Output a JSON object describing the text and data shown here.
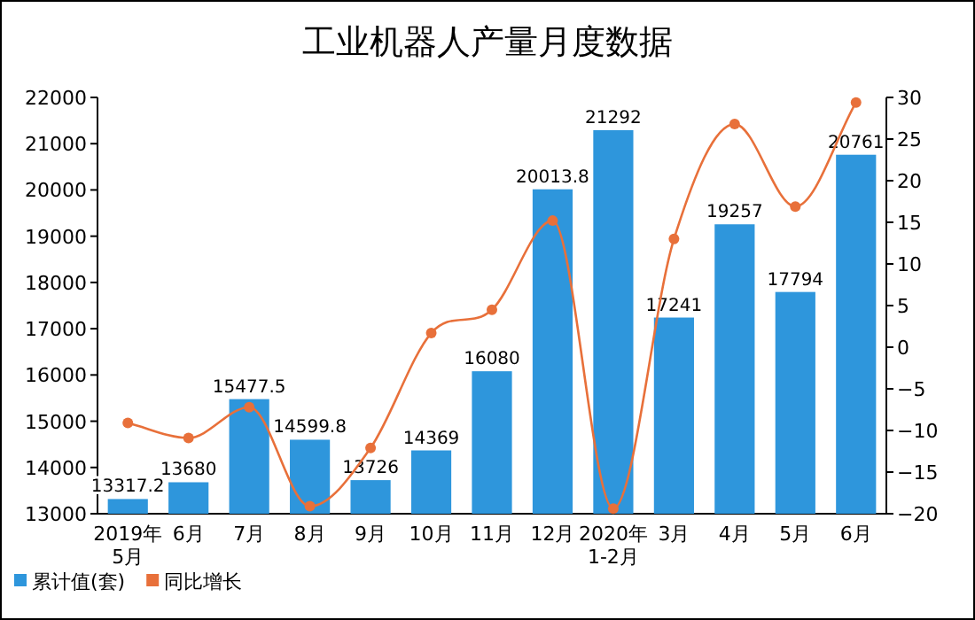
{
  "chart_data": {
    "type": "bar",
    "title": "工业机器人产量月度数据",
    "categories": [
      "2019年\n5月",
      "6月",
      "7月",
      "8月",
      "9月",
      "10月",
      "11月",
      "12月",
      "2020年\n1-2月",
      "3月",
      "4月",
      "5月",
      "6月"
    ],
    "series": [
      {
        "name": "累计值(套)",
        "color": "#2e96dc",
        "values": [
          13317.2,
          13680,
          15477.5,
          14599.8,
          13726,
          14369,
          16080,
          20013.8,
          21292,
          17241,
          19257,
          17794,
          20761
        ],
        "value_labels": [
          "13317.2",
          "13680",
          "15477.5",
          "14599.8",
          "13726",
          "14369",
          "16080",
          "20013.8",
          "21292",
          "17241",
          "19257",
          "17794",
          "20761"
        ]
      },
      {
        "name": "同比增长",
        "type": "line",
        "axis": "y2",
        "color": "#e8703a",
        "marker": "circle",
        "values": [
          -9.1,
          -10.9,
          -7.2,
          -19.1,
          -12.1,
          1.7,
          4.5,
          15.2,
          -19.4,
          13.0,
          26.8,
          16.9,
          29.4
        ]
      }
    ],
    "ylim": [
      13000,
      22000
    ],
    "yticks": [
      13000,
      14000,
      15000,
      16000,
      17000,
      18000,
      19000,
      20000,
      21000,
      22000
    ],
    "y2lim": [
      -20,
      30
    ],
    "y2ticks": [
      -20,
      -15,
      -10,
      -5,
      0,
      5,
      10,
      15,
      20,
      25,
      30
    ],
    "grid": false,
    "legend": "bottom left"
  }
}
